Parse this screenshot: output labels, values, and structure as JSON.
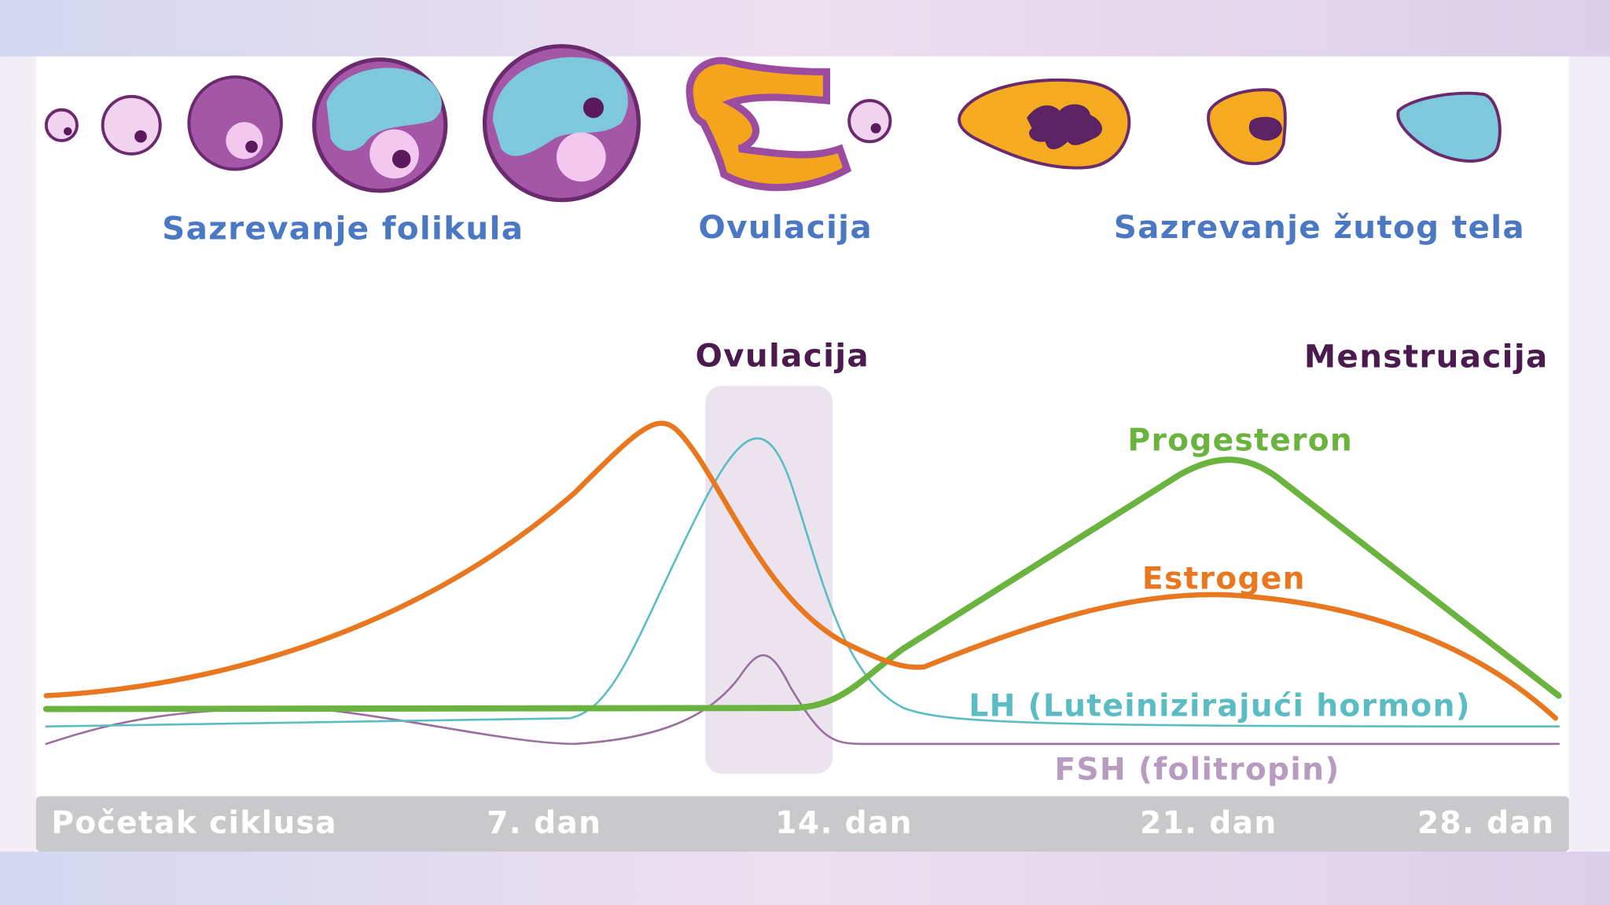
{
  "phases": {
    "follicle": "Sazrevanje folikula",
    "ovulation": "Ovulacija",
    "corpus_luteum": "Sazrevanje žutog tela"
  },
  "events": {
    "ovulation": "Ovulacija",
    "menstruation": "Menstruacija"
  },
  "hormones": {
    "progesterone": "Progesteron",
    "estrogen": "Estrogen",
    "lh": "LH (Luteinizirajući hormon)",
    "fsh": "FSH (folitropin)"
  },
  "timeline": [
    "Početak ciklusa",
    "7. dan",
    "14. dan",
    "21. dan",
    "28. dan"
  ]
}
